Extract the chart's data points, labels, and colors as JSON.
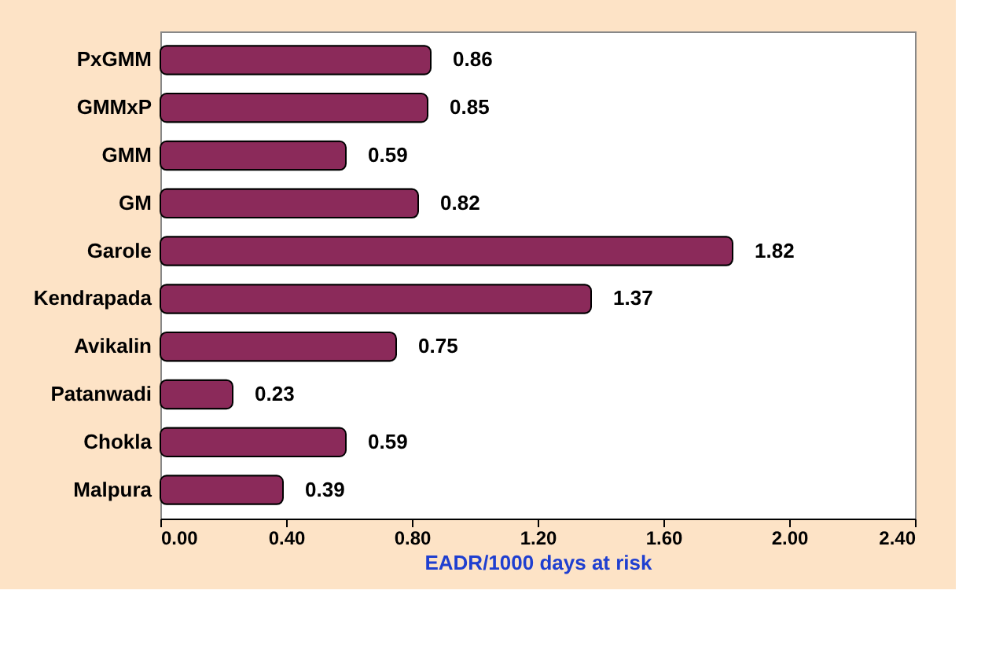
{
  "chart_data": {
    "type": "bar",
    "orientation": "horizontal",
    "xlabel": "EADR/1000 days at risk",
    "categories": [
      "PxGMM",
      "GMMxP",
      "GMM",
      "GM",
      "Garole",
      "Kendrapada",
      "Avikalin",
      "Patanwadi",
      "Chokla",
      "Malpura"
    ],
    "values": [
      0.86,
      0.85,
      0.59,
      0.82,
      1.82,
      1.37,
      0.75,
      0.23,
      0.59,
      0.39
    ],
    "color": "#8b2a5a",
    "xlim": [
      0,
      2.4
    ],
    "xticks": [
      {
        "value": 0,
        "label": "0.00"
      },
      {
        "value": 0.4,
        "label": "0.40"
      },
      {
        "value": 0.8,
        "label": "0.80"
      },
      {
        "value": 1.2,
        "label": "1.20"
      },
      {
        "value": 1.6,
        "label": "1.60"
      },
      {
        "value": 2.0,
        "label": "2.00"
      },
      {
        "value": 2.4,
        "label": "2.40"
      }
    ],
    "data_labels": true,
    "grid": false
  }
}
